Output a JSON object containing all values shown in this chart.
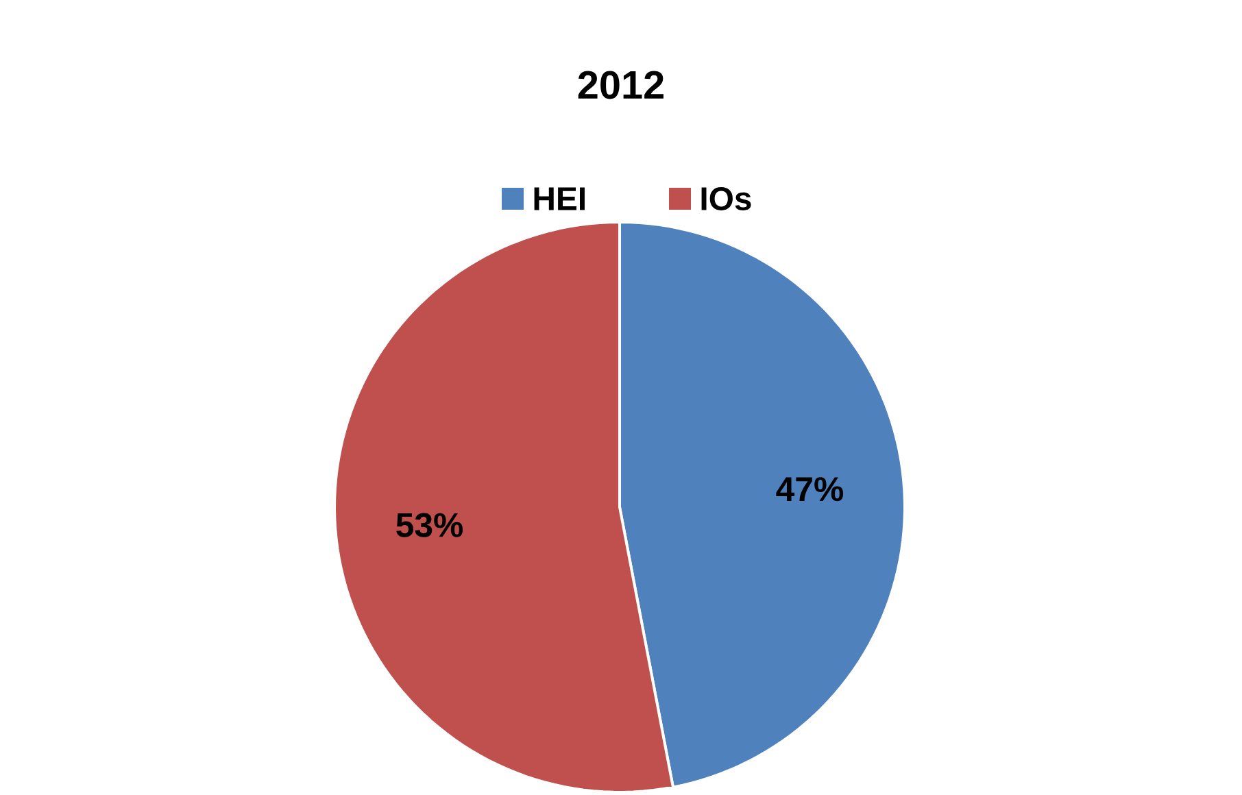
{
  "chart_data": {
    "type": "pie",
    "title": "2012",
    "categories": [
      "HEI",
      "IOs"
    ],
    "values": [
      47,
      53
    ],
    "colors": [
      "#4f81bd",
      "#c0504d"
    ],
    "value_labels": [
      "47%",
      "53%"
    ],
    "legend": "top"
  }
}
